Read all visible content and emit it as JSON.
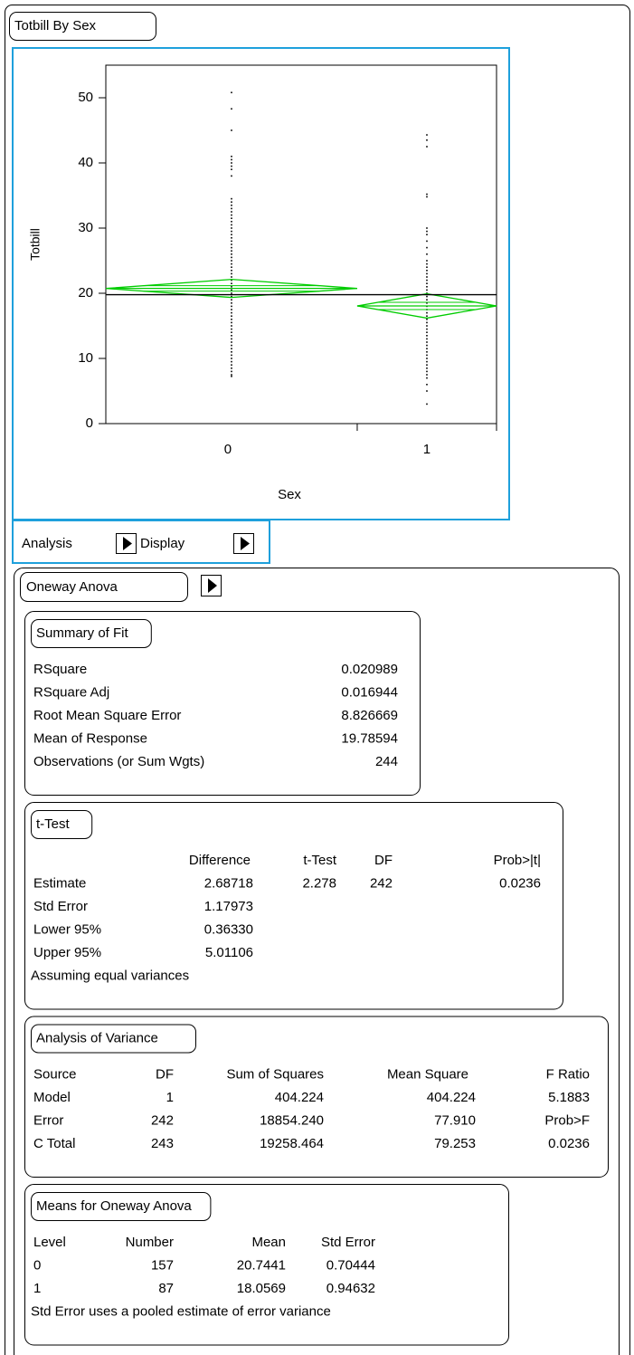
{
  "header": {
    "title": "Totbill By Sex"
  },
  "chart_data": {
    "type": "scatter",
    "x_label": "Sex",
    "y_label": "Totbill",
    "categories": [
      "0",
      "1"
    ],
    "ylim": [
      0,
      55
    ],
    "yticks": [
      0,
      10,
      20,
      30,
      40,
      50
    ],
    "color": "#000000",
    "diamond_color": "#00cc00",
    "points": {
      "x": [
        0,
        0,
        0,
        0,
        0,
        0,
        0,
        0,
        0,
        0,
        0,
        0,
        0,
        0,
        0,
        0,
        0,
        0,
        0,
        0,
        0,
        0,
        0,
        0,
        0,
        0,
        0,
        0,
        0,
        0,
        0,
        0,
        0,
        0,
        0,
        0,
        0,
        0,
        0,
        0,
        0,
        0,
        0,
        0,
        0,
        0,
        0,
        0,
        0,
        0,
        0,
        0,
        0,
        0,
        0,
        0,
        0,
        0,
        0,
        0,
        0,
        0,
        0,
        0,
        0,
        1,
        1,
        1,
        1,
        1,
        1,
        1,
        1,
        1,
        1,
        1,
        1,
        1,
        1,
        1,
        1,
        1,
        1,
        1,
        1,
        1,
        1,
        1,
        1,
        1,
        1,
        1,
        1,
        1,
        1,
        1,
        1,
        1,
        1,
        1,
        1,
        1,
        1,
        1,
        1,
        1,
        1,
        1,
        1,
        1,
        1,
        1,
        1,
        1,
        1,
        1
      ],
      "y": [
        7.25,
        7.5,
        8,
        8.5,
        9,
        9.5,
        10,
        10.5,
        11,
        11.5,
        12,
        12.5,
        13,
        13.5,
        14,
        14.5,
        15,
        15.5,
        16,
        16.5,
        17,
        17.5,
        18,
        18.5,
        19,
        19.5,
        20,
        20.5,
        21,
        21.5,
        22,
        22.5,
        23,
        23.5,
        24,
        24.5,
        25,
        25.5,
        26,
        26.5,
        27,
        27.5,
        28,
        28.5,
        29,
        29.5,
        30,
        30.5,
        31,
        31.5,
        32,
        32.5,
        33,
        33.5,
        34,
        34.5,
        38,
        39,
        39.5,
        40,
        40.5,
        41,
        45,
        48.3,
        50.8,
        3,
        5,
        6,
        7,
        7.5,
        8,
        8.5,
        9,
        9.5,
        10,
        10.5,
        11,
        11.5,
        12,
        12.5,
        13,
        13.5,
        14,
        14.5,
        15,
        15.5,
        16,
        16.5,
        17,
        17.5,
        18,
        18.5,
        19,
        19.5,
        20,
        20.5,
        21,
        21.5,
        22,
        22.5,
        23,
        23.5,
        24,
        24.5,
        25,
        26,
        27,
        28,
        29,
        29.5,
        30,
        34.8,
        35.2,
        42.5,
        43.5,
        44.3
      ]
    }
  },
  "toolbar": {
    "analysis": "Analysis",
    "display": "Display"
  },
  "oneway": {
    "title": "Oneway Anova",
    "summary_of_fit": {
      "title": "Summary of Fit",
      "rows": [
        [
          "RSquare",
          "0.020989"
        ],
        [
          "RSquare Adj",
          "0.016944"
        ],
        [
          "Root Mean Square Error",
          "8.826669"
        ],
        [
          "Mean of Response",
          "19.78594"
        ],
        [
          "Observations (or Sum Wgts)",
          "244"
        ]
      ]
    },
    "t_test": {
      "title": "t-Test",
      "columns": [
        "Difference",
        "t-Test",
        "DF",
        "Prob>|t|"
      ],
      "rows": [
        [
          "Estimate",
          "2.68718",
          "2.278",
          "242",
          "0.0236"
        ],
        [
          "Std Error",
          "1.17973"
        ],
        [
          "Lower 95%",
          "0.36330"
        ],
        [
          "Upper 95%",
          "5.01106"
        ]
      ],
      "note": "Assuming equal variances"
    },
    "anova": {
      "title": "Analysis of Variance",
      "columns": [
        "Source",
        "DF",
        "Sum of Squares",
        "Mean Square",
        "F Ratio"
      ],
      "rows": [
        [
          "Model",
          "1",
          "404.224",
          "404.224",
          "5.1883"
        ],
        [
          "Error",
          "242",
          "18854.240",
          "77.910",
          "Prob>F"
        ],
        [
          "C Total",
          "243",
          "19258.464",
          "79.253",
          "0.0236"
        ]
      ]
    },
    "means": {
      "title": "Means for Oneway Anova",
      "columns": [
        "Level",
        "Number",
        "Mean",
        "Std Error"
      ],
      "rows": [
        [
          "0",
          "157",
          "20.7441",
          "0.70444"
        ],
        [
          "1",
          "87",
          "18.0569",
          "0.94632"
        ]
      ],
      "note": "Std Error uses a pooled estimate of  error variance"
    }
  }
}
